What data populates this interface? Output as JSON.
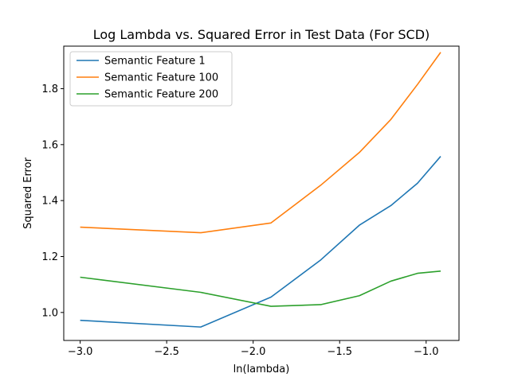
{
  "chart_data": {
    "type": "line",
    "title": "Log Lambda vs. Squared Error in Test Data (For SCD)",
    "xlabel": "ln(lambda)",
    "ylabel": "Squared Error",
    "xlim": [
      -3.095,
      -0.81
    ],
    "ylim": [
      0.9,
      1.952
    ],
    "x_ticks": [
      -3.0,
      -2.5,
      -2.0,
      -1.5,
      -1.0
    ],
    "x_tick_labels": [
      "−3.0",
      "−2.5",
      "−2.0",
      "−1.5",
      "−1.0"
    ],
    "y_ticks": [
      1.0,
      1.2,
      1.4,
      1.6,
      1.8
    ],
    "y_tick_labels": [
      "1.0",
      "1.2",
      "1.4",
      "1.6",
      "1.8"
    ],
    "grid": false,
    "legend_position": "top-left",
    "x": [
      -3.0,
      -2.303,
      -1.897,
      -1.609,
      -1.386,
      -1.204,
      -1.05,
      -0.916
    ],
    "series": [
      {
        "name": "Semantic Feature 1",
        "color": "#1f77b4",
        "values": [
          0.972,
          0.948,
          1.055,
          1.188,
          1.312,
          1.382,
          1.462,
          1.558
        ]
      },
      {
        "name": "Semantic Feature 100",
        "color": "#ff7f0e",
        "values": [
          1.305,
          1.285,
          1.32,
          1.455,
          1.572,
          1.69,
          1.815,
          1.93
        ]
      },
      {
        "name": "Semantic Feature 200",
        "color": "#2ca02c",
        "values": [
          1.126,
          1.072,
          1.022,
          1.028,
          1.06,
          1.112,
          1.14,
          1.148
        ]
      }
    ]
  }
}
